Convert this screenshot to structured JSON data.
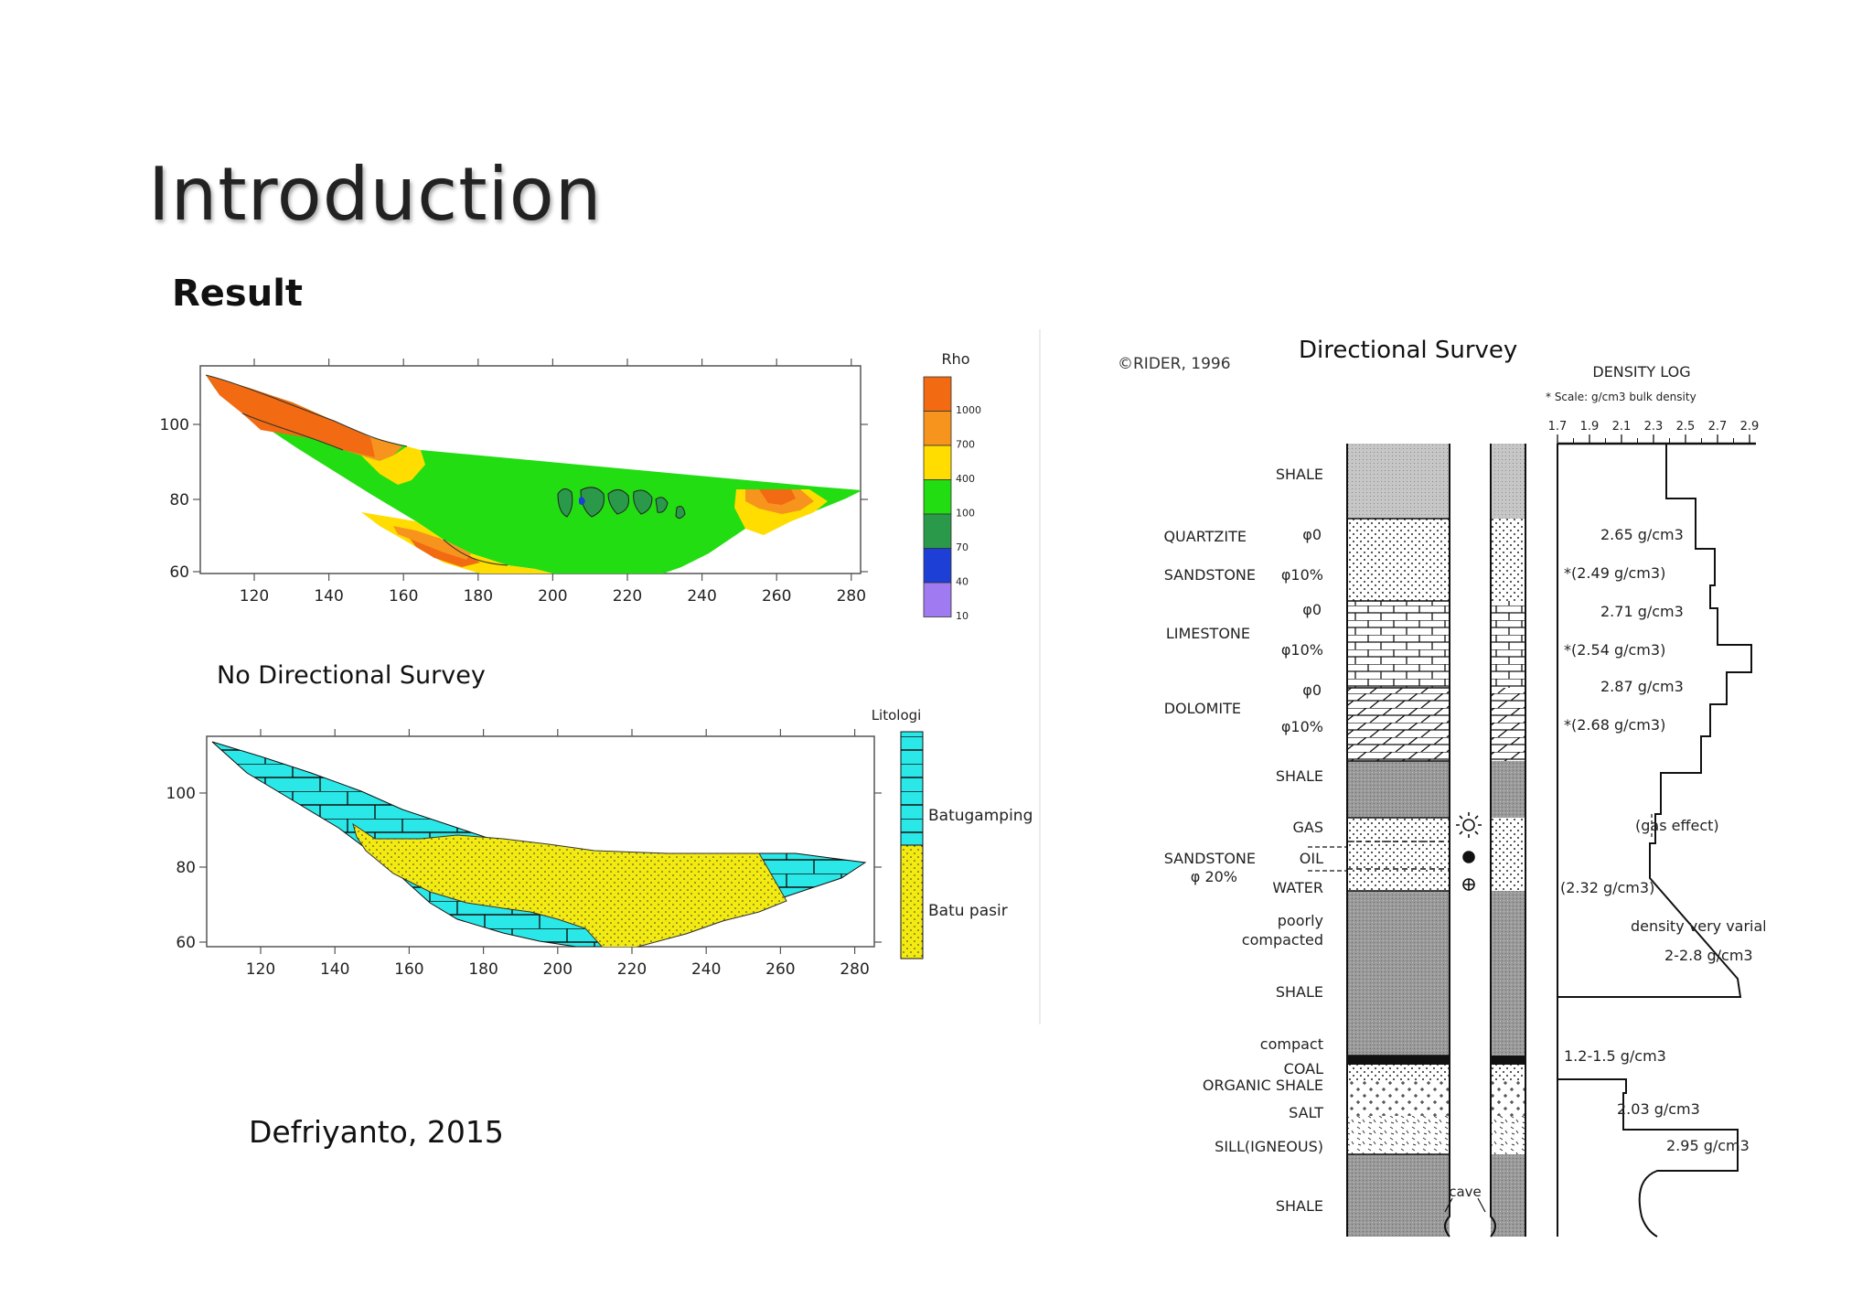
{
  "slide": {
    "title": "Introduction",
    "subtitle": "Result"
  },
  "captions": {
    "no_directional": "No Directional Survey",
    "directional": "Directional Survey",
    "citation": "Defriyanto, 2015",
    "rider": "©RIDER, 1996"
  },
  "rho_chart": {
    "legend_title": "Rho",
    "x_ticks": [
      "120",
      "140",
      "160",
      "180",
      "200",
      "220",
      "240",
      "260",
      "280"
    ],
    "y_ticks": [
      "100",
      "80",
      "60"
    ],
    "legend_levels": [
      "1000",
      "700",
      "400",
      "100",
      "70",
      "40",
      "10"
    ],
    "colors": {
      "c1": "#f26a11",
      "c2": "#f7941d",
      "c3": "#ffdd00",
      "c4": "#22dd11",
      "c5": "#2a9a4a",
      "c6": "#1d3fd6",
      "c7": "#a07af0"
    }
  },
  "lith_chart": {
    "legend_title": "Litologi",
    "x_ticks": [
      "120",
      "140",
      "160",
      "180",
      "200",
      "220",
      "240",
      "260",
      "280"
    ],
    "y_ticks": [
      "100",
      "80",
      "60"
    ],
    "units": [
      {
        "name": "Batugamping",
        "color": "#2ae8e8"
      },
      {
        "name": "Batu pasir",
        "color": "#f2ea10"
      }
    ]
  },
  "density_log": {
    "header": "DENSITY LOG",
    "scale_note": "* Scale: g/cm3 bulk density",
    "scale_ticks": [
      "1.7",
      "1.9",
      "2.1",
      "2.3",
      "2.5",
      "2.7",
      "2.9"
    ],
    "rock_labels": [
      "SHALE",
      "QUARTZITE",
      "SANDSTONE",
      "LIMESTONE",
      "DOLOMITE",
      "SHALE",
      "SANDSTONE",
      "φ 20%",
      "poorly",
      "compacted",
      "SHALE",
      "compact",
      "COAL",
      "ORGANIC SHALE",
      "SALT",
      "SILL(IGNEOUS)",
      "SHALE"
    ],
    "fluid_labels": [
      "GAS",
      "OIL",
      "WATER"
    ],
    "porosity_labels": [
      "φ0",
      "φ10%",
      "φ0",
      "φ10%",
      "φ0",
      "φ10%"
    ],
    "value_labels": [
      "2.65 g/cm3",
      "*(2.49 g/cm3)",
      "2.71 g/cm3",
      "*(2.54 g/cm3)",
      "2.87 g/cm3",
      "*(2.68 g/cm3)",
      "(gas effect)",
      "(2.32 g/cm3)",
      "density very variable",
      "2-2.8 g/cm3",
      "1.2-1.5 g/cm3",
      "2.03 g/cm3",
      "2.95 g/cm3"
    ],
    "cave_label": "cave"
  }
}
